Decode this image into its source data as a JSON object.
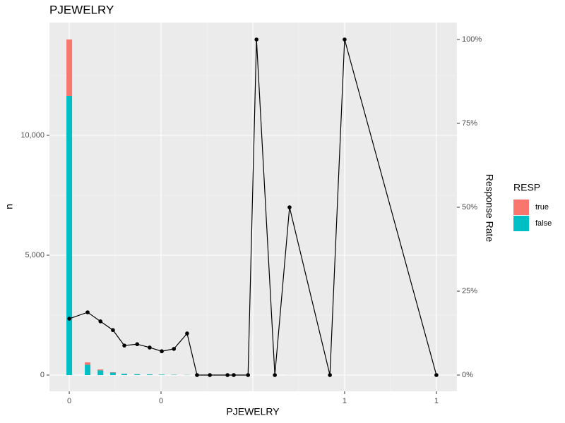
{
  "chart_data": {
    "type": "bar",
    "title": "PJEWELRY",
    "xlabel": "PJEWELRY",
    "ylabel": "n",
    "y2label": "Response Rate",
    "legend_title": "RESP",
    "x": [
      0,
      0.05,
      0.085,
      0.119,
      0.15,
      0.185,
      0.219,
      0.252,
      0.285,
      0.321,
      0.348,
      0.383,
      0.431,
      0.448,
      0.487,
      0.51,
      0.56,
      0.6,
      0.71,
      0.75,
      1
    ],
    "series": [
      {
        "name": "true",
        "color": "#f8766d",
        "values": [
          2353,
          99,
          38,
          16,
          5,
          4,
          2,
          1,
          1,
          1,
          0,
          0,
          0,
          0,
          0,
          1,
          0,
          1,
          0,
          1,
          0
        ]
      },
      {
        "name": "false",
        "color": "#00bfc4",
        "values": [
          11647,
          430,
          197,
          102,
          54,
          36,
          28,
          19,
          12,
          7,
          5,
          4,
          3,
          3,
          2,
          0,
          2,
          1,
          1,
          0,
          1
        ]
      }
    ],
    "rate_values": [
      16.8,
      18.7,
      16.0,
      13.4,
      8.8,
      9.2,
      8.2,
      7.1,
      7.8,
      12.4,
      0,
      0,
      0,
      0,
      0,
      100,
      0,
      50,
      0,
      100,
      0
    ],
    "rate_color": "#000000",
    "xlim": [
      -0.054,
      1.056
    ],
    "xticks": [
      {
        "value": 0,
        "label": "0"
      },
      {
        "value": 0.25,
        "label": "0"
      },
      {
        "value": 0.75,
        "label": "1"
      },
      {
        "value": 1,
        "label": "1"
      }
    ],
    "ylim": [
      -676,
      14706
    ],
    "yticks": [
      0,
      {
        "value": 5000,
        "label": "5,000"
      },
      {
        "value": 10000,
        "label": "10,000"
      }
    ],
    "y2lim": [
      -4.83,
      105.04
    ],
    "y2ticks": [
      {
        "value": 0,
        "label": "0%"
      },
      {
        "value": 25,
        "label": "25%"
      },
      {
        "value": 50,
        "label": "50%"
      },
      {
        "value": 75,
        "label": "75%"
      },
      {
        "value": 100,
        "label": "100%"
      }
    ],
    "grid": true,
    "legend": "right"
  }
}
